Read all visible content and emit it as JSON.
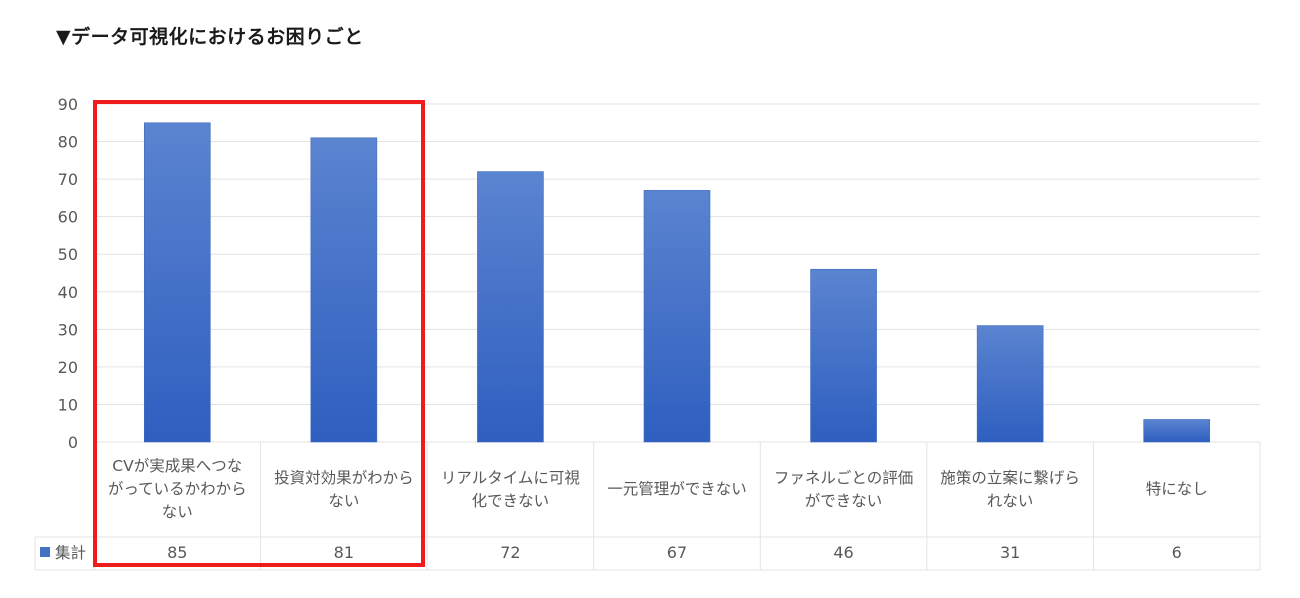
{
  "title": "▼データ可視化におけるお困りごと",
  "chart_data": {
    "type": "bar",
    "categories": [
      "CVが実成果へつながっているかわからない",
      "投資対効果がわからない",
      "リアルタイムに可視化できない",
      "一元管理ができない",
      "ファネルごとの評価ができない",
      "施策の立案に繋げられない",
      "特になし"
    ],
    "category_lines": [
      [
        "CVが実成果へつな",
        "がっているかわから",
        "ない"
      ],
      [
        "投資対効果がわから",
        "ない"
      ],
      [
        "リアルタイムに可視",
        "化できない"
      ],
      [
        "一元管理ができない"
      ],
      [
        "ファネルごとの評価",
        "ができない"
      ],
      [
        "施策の立案に繋げら",
        "れない"
      ],
      [
        "特になし"
      ]
    ],
    "series": [
      {
        "name": "集計",
        "values": [
          85,
          81,
          72,
          67,
          46,
          31,
          6
        ]
      }
    ],
    "ylim": [
      0,
      90
    ],
    "yticks": [
      0,
      10,
      20,
      30,
      40,
      50,
      60,
      70,
      80,
      90
    ],
    "legend": "bottom-left data table",
    "grid": true,
    "bar_color": "#4472c4",
    "highlight_color": "#ee1c1c",
    "highlighted_categories": [
      0,
      1
    ]
  }
}
